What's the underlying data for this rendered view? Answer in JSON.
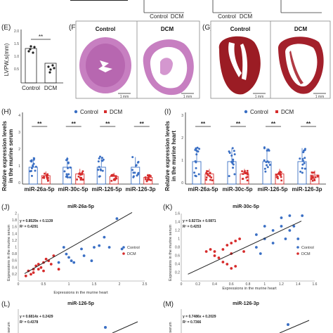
{
  "panels": {
    "top_labels": [
      "Control",
      "DCM",
      "Control",
      "DCM"
    ],
    "E": {
      "letter": "(E)",
      "ylabel": "LVPW,s(mm)",
      "yticks": [
        "0.5",
        "1.0",
        "1.5",
        "2.0"
      ],
      "categories": [
        "Control",
        "DCM"
      ],
      "sig": "**"
    },
    "F": {
      "letter": "(F)",
      "label_left": "Control",
      "label_right": "DCM",
      "scale": "1 mm"
    },
    "G": {
      "letter": "(G)",
      "label_left": "Control",
      "label_right": "DCM",
      "scale": "1 mm"
    },
    "H": {
      "letter": "(H)",
      "ylabel": [
        "Relative expression levels",
        "in the murine serum"
      ],
      "yticks": [
        "0",
        "1",
        "2",
        "3",
        "4"
      ],
      "legend": [
        "Control",
        "DCM"
      ],
      "categories": [
        "miR-26a-5p",
        "miR-30c-5p",
        "miR-126-5p",
        "miR-126-3p"
      ],
      "sig": "**"
    },
    "I": {
      "letter": "(I)",
      "ylabel": [
        "Relative expression levels",
        "in the murine heart"
      ],
      "yticks": [
        "0",
        "1",
        "2",
        "3"
      ],
      "legend": [
        "Control",
        "DCM"
      ],
      "categories": [
        "miR-26a-5p",
        "miR-30c-5p",
        "miR-126-5p",
        "miR-126-3p"
      ],
      "sig": "**"
    },
    "J": {
      "letter": "(J)",
      "title": "miR-26a-5p",
      "eq": "y = 0.8529x + 0.1139",
      "r2": "R² = 0.4291",
      "xlabel": "Expressions in the murine heart",
      "ylabel": "Expressions in the murine serum",
      "xticks": [
        "0",
        "0.5",
        "1",
        "1.5",
        "2",
        "2.5"
      ],
      "yticks": [
        "0.2",
        "0.4",
        "0.6",
        "0.8",
        "1",
        "1.2",
        "1.4",
        "1.6",
        "1.8",
        "2"
      ],
      "legend": [
        "Control",
        "DCM"
      ]
    },
    "K": {
      "letter": "(K)",
      "title": "miR-30c-5p",
      "eq": "y = 0.9272x + 0.0871",
      "r2": "R² = 0.4253",
      "xlabel": "Expressions in the murine heart",
      "ylabel": "Expressions in the murine serum",
      "xticks": [
        "0",
        "0.2",
        "0.4",
        "0.6",
        "0.8",
        "1",
        "1.2",
        "1.4",
        "1.6"
      ],
      "yticks": [
        "0.2",
        "0.4",
        "0.6",
        "0.8",
        "1",
        "1.2",
        "1.4",
        "1.6"
      ],
      "legend": [
        "Control",
        "DCM"
      ]
    },
    "L": {
      "letter": "(L)",
      "title": "miR-126-5p",
      "eq": "y = 0.6814x + 0.2429",
      "r2": "R² = 0.4378",
      "ylabel": "serum"
    },
    "M": {
      "letter": "(M)",
      "title": "miR-126-3p",
      "eq": "y = 0.7486x + 0.2029",
      "r2": "R² = 0.7366",
      "ylabel": "serum"
    }
  },
  "colors": {
    "control": "#3a6fc4",
    "dcm": "#d62b2b",
    "line": "#222222"
  },
  "chart_data": [
    {
      "type": "bar",
      "panel": "E",
      "categories": [
        "Control",
        "DCM"
      ],
      "values": [
        1.35,
        0.78
      ],
      "ylabel": "LVPW,s(mm)",
      "ylim": [
        0,
        2.0
      ]
    },
    {
      "type": "bar",
      "panel": "H",
      "categories": [
        "miR-26a-5p",
        "miR-30c-5p",
        "miR-126-5p",
        "miR-126-3p"
      ],
      "series": [
        {
          "name": "Control",
          "values": [
            1.0,
            1.0,
            1.0,
            1.0
          ]
        },
        {
          "name": "DCM",
          "values": [
            0.5,
            0.6,
            0.45,
            0.4
          ]
        }
      ],
      "ylim": [
        0,
        4
      ]
    },
    {
      "type": "bar",
      "panel": "I",
      "categories": [
        "miR-26a-5p",
        "miR-30c-5p",
        "miR-126-5p",
        "miR-126-3p"
      ],
      "series": [
        {
          "name": "Control",
          "values": [
            1.0,
            1.0,
            1.0,
            1.0
          ]
        },
        {
          "name": "DCM",
          "values": [
            0.45,
            0.45,
            0.45,
            0.4
          ]
        }
      ],
      "ylim": [
        0,
        3
      ]
    },
    {
      "type": "scatter",
      "panel": "J",
      "title": "miR-26a-5p",
      "xlim": [
        0,
        2.5
      ],
      "ylim": [
        0,
        2
      ],
      "series": [
        {
          "name": "Control",
          "points": [
            [
              0.9,
              1.0
            ],
            [
              1.0,
              0.7
            ],
            [
              1.1,
              0.55
            ],
            [
              1.3,
              0.75
            ],
            [
              1.5,
              1.0
            ],
            [
              1.6,
              1.05
            ],
            [
              1.7,
              1.3
            ],
            [
              1.8,
              1.0
            ],
            [
              1.25,
              0.95
            ],
            [
              1.05,
              0.6
            ],
            [
              0.95,
              0.8
            ],
            [
              2.05,
              0.95
            ],
            [
              1.95,
              1.85
            ],
            [
              1.45,
              0.6
            ],
            [
              0.8,
              0.55
            ]
          ]
        },
        {
          "name": "DCM",
          "points": [
            [
              0.2,
              0.3
            ],
            [
              0.3,
              0.35
            ],
            [
              0.35,
              0.45
            ],
            [
              0.4,
              0.5
            ],
            [
              0.45,
              0.4
            ],
            [
              0.5,
              0.55
            ],
            [
              0.55,
              0.65
            ],
            [
              0.6,
              0.6
            ],
            [
              0.65,
              0.5
            ],
            [
              0.7,
              0.75
            ],
            [
              0.25,
              0.2
            ],
            [
              0.3,
              0.25
            ],
            [
              0.15,
              0.15
            ],
            [
              0.5,
              0.3
            ],
            [
              0.4,
              0.35
            ],
            [
              0.8,
              0.35
            ]
          ]
        }
      ],
      "trendline": {
        "slope": 0.8529,
        "intercept": 0.1139
      }
    },
    {
      "type": "scatter",
      "panel": "K",
      "title": "miR-30c-5p",
      "xlim": [
        0,
        1.6
      ],
      "ylim": [
        0,
        1.6
      ],
      "series": [
        {
          "name": "Control",
          "points": [
            [
              1.0,
              1.0
            ],
            [
              1.1,
              1.2
            ],
            [
              1.2,
              1.3
            ],
            [
              1.3,
              1.2
            ],
            [
              1.35,
              1.3
            ],
            [
              1.45,
              1.55
            ],
            [
              1.3,
              1.55
            ],
            [
              1.2,
              1.5
            ],
            [
              1.4,
              1.0
            ],
            [
              1.1,
              0.9
            ],
            [
              0.9,
              1.1
            ],
            [
              1.0,
              1.3
            ],
            [
              1.25,
              1.0
            ],
            [
              0.9,
              0.8
            ],
            [
              0.95,
              0.65
            ]
          ]
        },
        {
          "name": "DCM",
          "points": [
            [
              0.3,
              0.7
            ],
            [
              0.35,
              0.75
            ],
            [
              0.4,
              0.7
            ],
            [
              0.5,
              0.75
            ],
            [
              0.55,
              0.85
            ],
            [
              0.6,
              0.9
            ],
            [
              0.65,
              0.95
            ],
            [
              0.7,
              1.0
            ],
            [
              0.4,
              0.6
            ],
            [
              0.45,
              0.55
            ],
            [
              0.5,
              0.45
            ],
            [
              0.55,
              0.4
            ],
            [
              0.6,
              0.3
            ],
            [
              0.65,
              0.35
            ],
            [
              0.6,
              0.65
            ],
            [
              0.75,
              0.7
            ]
          ]
        }
      ],
      "trendline": {
        "slope": 0.9272,
        "intercept": 0.0871
      }
    },
    {
      "type": "scatter",
      "panel": "L",
      "title": "miR-126-5p",
      "trendline": {
        "slope": 0.6814,
        "intercept": 0.2429
      }
    },
    {
      "type": "scatter",
      "panel": "M",
      "title": "miR-126-3p",
      "trendline": {
        "slope": 0.7486,
        "intercept": 0.2029
      }
    }
  ]
}
